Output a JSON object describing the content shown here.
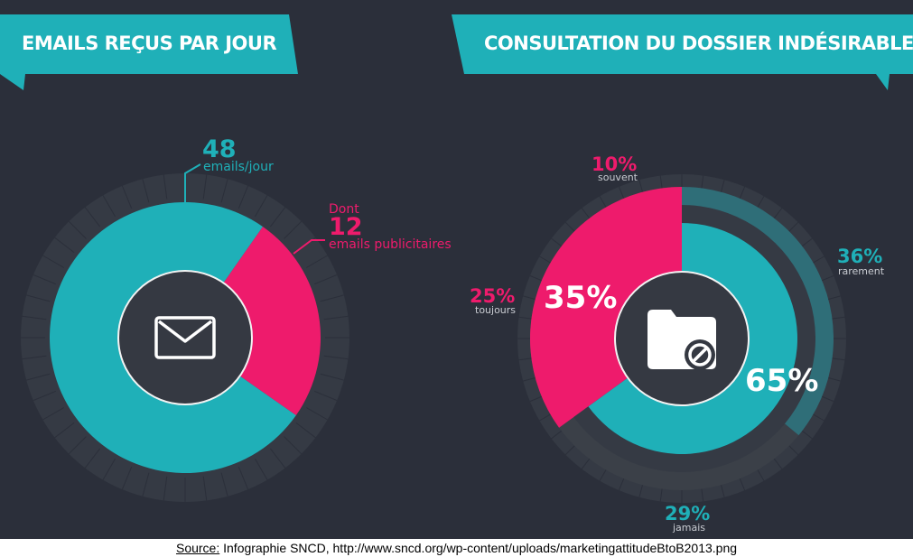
{
  "left_panel": {
    "title": "EMAILS REÇUS PAR JOUR",
    "total_value": "48",
    "total_unit": "emails/jour",
    "sub_prefix": "Dont",
    "sub_value": "12",
    "sub_unit": "emails publicitaires",
    "icon": "envelope-icon"
  },
  "right_panel": {
    "title": "CONSULTATION DU DOSSIER INDÉSIRABLE",
    "inner_left_label": "35%",
    "inner_right_label": "65%",
    "icon": "folder-block-icon",
    "outer_labels": {
      "souvent": {
        "value": "10%",
        "name": "souvent"
      },
      "toujours": {
        "value": "25%",
        "name": "toujours"
      },
      "rarement": {
        "value": "36%",
        "name": "rarement"
      },
      "jamais": {
        "value": "29%",
        "name": "jamais"
      }
    }
  },
  "colors": {
    "background": "#2b2f3a",
    "teal": "#1fb0b8",
    "pink": "#ee1b6c",
    "center": "#353942"
  },
  "chart_data": [
    {
      "type": "pie",
      "title": "EMAILS REÇUS PAR JOUR",
      "categories": [
        "emails/jour",
        "emails publicitaires"
      ],
      "values": [
        36,
        12
      ],
      "total": 48
    },
    {
      "type": "pie",
      "title": "CONSULTATION DU DOSSIER INDÉSIRABLE",
      "series": [
        {
          "categories": [
            "35%",
            "65%"
          ],
          "values": [
            35,
            65
          ]
        },
        {
          "categories": [
            "souvent",
            "toujours",
            "jamais",
            "rarement"
          ],
          "values": [
            10,
            25,
            29,
            36
          ]
        }
      ]
    }
  ],
  "footer": {
    "source_label": "Source:",
    "source_text": " Infographie SNCD, http://www.sncd.org/wp-content/uploads/marketingattitudeBtoB2013.png"
  }
}
